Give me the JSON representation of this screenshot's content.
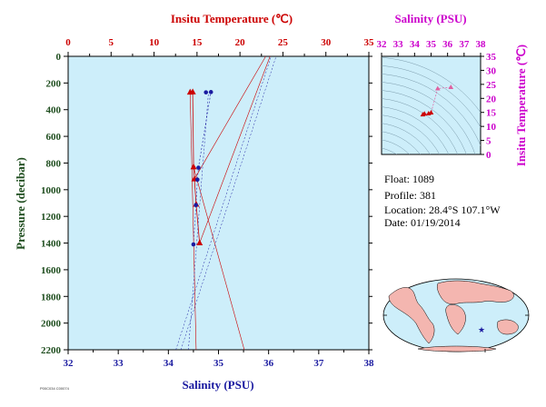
{
  "colors": {
    "temperature": "#cc0000",
    "salinity": "#1a1aa0",
    "pressure_axis": "#1e4d1e",
    "ts_axis": "#cc00cc",
    "plot_bg": "#cdeefa",
    "land": "#f4b6b0"
  },
  "chart_data": [
    {
      "type": "scatter",
      "ylabel": "Pressure (decibar)",
      "ylim": [
        2200,
        0
      ],
      "yticks": [
        "0",
        "200",
        "400",
        "600",
        "800",
        "1000",
        "1200",
        "1400",
        "1600",
        "1800",
        "2000",
        "2200"
      ],
      "top_axis": {
        "label": "Insitu Temperature (℃)",
        "range": [
          0,
          35
        ],
        "ticks": [
          "0",
          "5",
          "10",
          "15",
          "20",
          "25",
          "30",
          "35"
        ]
      },
      "bottom_axis": {
        "label": "Salinity (PSU)",
        "range": [
          32,
          38
        ],
        "ticks": [
          "32",
          "33",
          "34",
          "35",
          "36",
          "37",
          "38"
        ]
      },
      "series": [
        {
          "variable": "temperature",
          "marker": "triangle",
          "points": [
            {
              "x": 14.2,
              "y": 270
            },
            {
              "x": 14.5,
              "y": 268
            },
            {
              "x": 14.6,
              "y": 830
            },
            {
              "x": 14.7,
              "y": 920
            },
            {
              "x": 14.9,
              "y": 1110
            },
            {
              "x": 15.3,
              "y": 1400
            }
          ]
        },
        {
          "variable": "salinity",
          "marker": "circle",
          "points": [
            {
              "x": 34.75,
              "y": 270
            },
            {
              "x": 34.85,
              "y": 268
            },
            {
              "x": 34.6,
              "y": 835
            },
            {
              "x": 34.58,
              "y": 925
            },
            {
              "x": 34.55,
              "y": 1115
            },
            {
              "x": 34.5,
              "y": 1410
            }
          ]
        }
      ],
      "grid": false
    },
    {
      "type": "scatter",
      "xlabel": "Salinity (PSU)",
      "ylabel": "Insitu Temperature (℃)",
      "xlim": [
        32,
        38
      ],
      "ylim": [
        0,
        35
      ],
      "xticks": [
        "32",
        "33",
        "34",
        "35",
        "36",
        "37",
        "38"
      ],
      "yticks": [
        "0",
        "5",
        "10",
        "15",
        "20",
        "25",
        "30",
        "35"
      ],
      "points": [
        {
          "x": 34.5,
          "y": 14.2
        },
        {
          "x": 34.6,
          "y": 14.5
        },
        {
          "x": 34.85,
          "y": 14.6
        },
        {
          "x": 35.0,
          "y": 14.9
        },
        {
          "x": 35.4,
          "y": 23.5
        },
        {
          "x": 36.2,
          "y": 24.0
        }
      ]
    }
  ],
  "info": {
    "float": "Float:  1089",
    "profile": "Profile:  381",
    "location": "Location:  28.4°S  107.1°W",
    "date": "Date:  01/19/2014"
  },
  "footer": {
    "code": "P00C034  C00074"
  }
}
